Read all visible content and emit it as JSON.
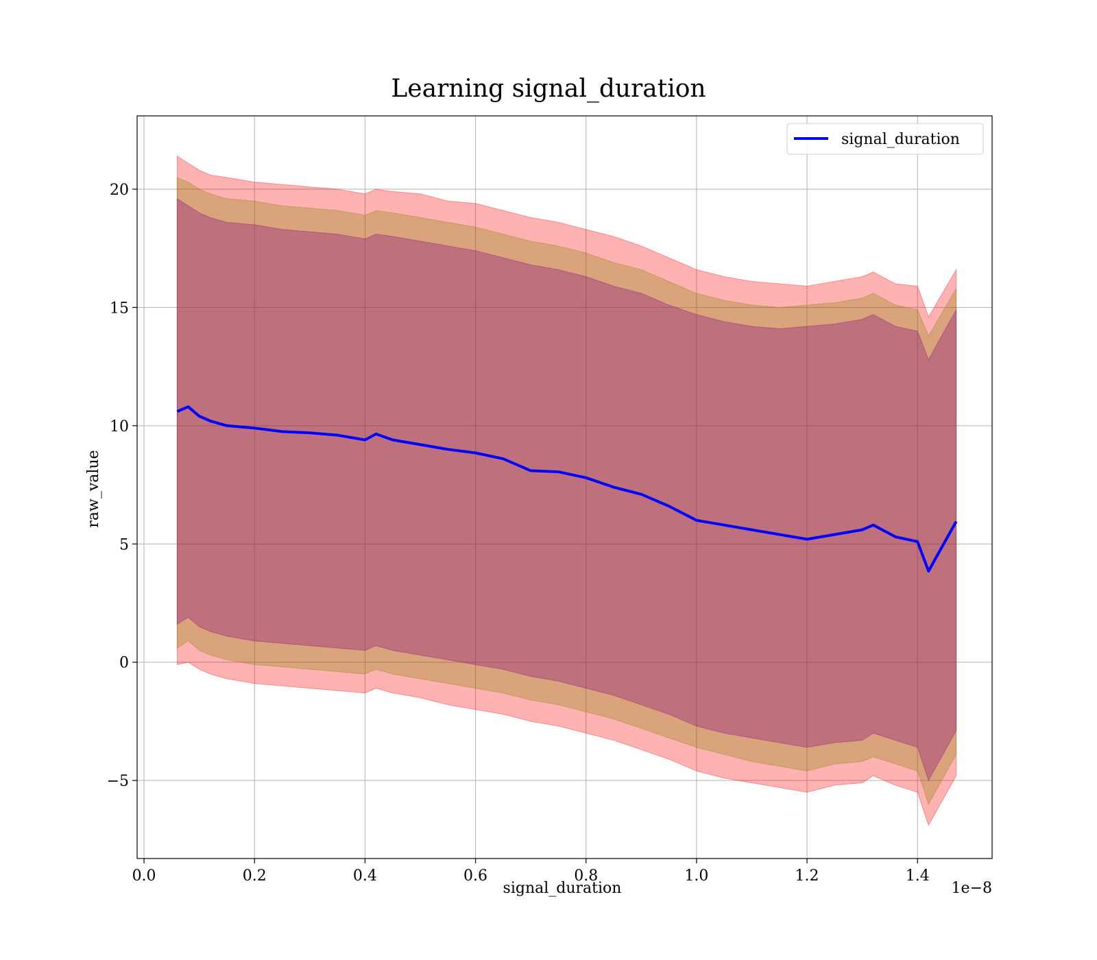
{
  "chart_data": {
    "type": "line",
    "title": "Learning signal_duration",
    "xlabel": "signal_duration",
    "ylabel": "raw_value",
    "x_offset_label": "1e−8",
    "x_scale_exponent": -8,
    "xlim": [
      -1.25e-10,
      1.535e-08
    ],
    "ylim": [
      -8.3,
      23.1
    ],
    "x_ticks": [
      0.0,
      2e-09,
      4e-09,
      6e-09,
      8e-09,
      1e-08,
      1.2e-08,
      1.4e-08
    ],
    "x_tick_labels": [
      "0.0",
      "0.2",
      "0.4",
      "0.6",
      "0.8",
      "1.0",
      "1.2",
      "1.4"
    ],
    "y_ticks": [
      -5,
      0,
      5,
      10,
      15,
      20
    ],
    "y_tick_labels": [
      "−5",
      "0",
      "5",
      "10",
      "15",
      "20"
    ],
    "grid": true,
    "legend_position": "top-right",
    "colors": {
      "line": "#0000ff",
      "band_outer": "#ff0000",
      "band_middle": "#808000",
      "band_inner": "#800080"
    },
    "series": [
      {
        "name": "signal_duration",
        "x": [
          6e-10,
          8e-10,
          1e-09,
          1.2e-09,
          1.5e-09,
          2e-09,
          2.5e-09,
          3e-09,
          3.5e-09,
          4e-09,
          4.2e-09,
          4.5e-09,
          5e-09,
          5.5e-09,
          6e-09,
          6.5e-09,
          7e-09,
          7.5e-09,
          8e-09,
          8.5e-09,
          9e-09,
          9.5e-09,
          1e-08,
          1.05e-08,
          1.1e-08,
          1.15e-08,
          1.2e-08,
          1.25e-08,
          1.3e-08,
          1.32e-08,
          1.36e-08,
          1.4e-08,
          1.42e-08,
          1.47e-08
        ],
        "y": [
          10.6,
          10.8,
          10.4,
          10.2,
          10.0,
          9.9,
          9.75,
          9.7,
          9.6,
          9.4,
          9.65,
          9.4,
          9.2,
          9.0,
          8.85,
          8.6,
          8.1,
          8.05,
          7.8,
          7.4,
          7.1,
          6.6,
          6.0,
          5.8,
          5.6,
          5.4,
          5.2,
          5.4,
          5.6,
          5.8,
          5.3,
          5.1,
          3.85,
          5.95
        ],
        "band_outer_upper": [
          21.4,
          21.1,
          20.8,
          20.6,
          20.5,
          20.3,
          20.2,
          20.1,
          20.0,
          19.8,
          20.0,
          19.9,
          19.8,
          19.5,
          19.4,
          19.1,
          18.8,
          18.6,
          18.3,
          18.0,
          17.6,
          17.1,
          16.6,
          16.3,
          16.1,
          16.0,
          15.9,
          16.1,
          16.3,
          16.5,
          16.0,
          15.9,
          14.6,
          16.6
        ],
        "band_outer_lower": [
          -0.1,
          0.0,
          -0.3,
          -0.5,
          -0.7,
          -0.9,
          -1.0,
          -1.1,
          -1.2,
          -1.3,
          -1.1,
          -1.3,
          -1.5,
          -1.8,
          -2.0,
          -2.2,
          -2.5,
          -2.7,
          -3.0,
          -3.3,
          -3.7,
          -4.1,
          -4.6,
          -4.9,
          -5.1,
          -5.3,
          -5.5,
          -5.2,
          -5.1,
          -4.8,
          -5.2,
          -5.5,
          -6.9,
          -4.8
        ],
        "band_middle_upper": [
          20.5,
          20.3,
          20.0,
          19.8,
          19.6,
          19.5,
          19.3,
          19.2,
          19.1,
          18.9,
          19.1,
          19.0,
          18.8,
          18.6,
          18.4,
          18.1,
          17.8,
          17.6,
          17.3,
          16.9,
          16.6,
          16.1,
          15.6,
          15.3,
          15.1,
          15.0,
          15.1,
          15.2,
          15.4,
          15.6,
          15.1,
          14.9,
          13.8,
          15.8
        ],
        "band_middle_lower": [
          0.6,
          0.9,
          0.5,
          0.3,
          0.1,
          -0.1,
          -0.2,
          -0.3,
          -0.4,
          -0.5,
          -0.3,
          -0.5,
          -0.7,
          -0.9,
          -1.1,
          -1.3,
          -1.6,
          -1.8,
          -2.1,
          -2.4,
          -2.8,
          -3.2,
          -3.6,
          -3.9,
          -4.2,
          -4.4,
          -4.6,
          -4.3,
          -4.2,
          -4.0,
          -4.3,
          -4.6,
          -6.0,
          -3.9
        ],
        "band_inner_upper": [
          19.6,
          19.3,
          19.0,
          18.8,
          18.6,
          18.5,
          18.3,
          18.2,
          18.1,
          17.9,
          18.1,
          18.0,
          17.8,
          17.6,
          17.4,
          17.1,
          16.8,
          16.6,
          16.3,
          15.9,
          15.6,
          15.1,
          14.7,
          14.4,
          14.2,
          14.1,
          14.2,
          14.3,
          14.5,
          14.7,
          14.2,
          14.0,
          12.8,
          14.9
        ],
        "band_inner_lower": [
          1.6,
          1.9,
          1.5,
          1.3,
          1.1,
          0.9,
          0.8,
          0.7,
          0.6,
          0.5,
          0.7,
          0.5,
          0.3,
          0.1,
          -0.1,
          -0.3,
          -0.6,
          -0.8,
          -1.1,
          -1.4,
          -1.8,
          -2.2,
          -2.7,
          -3.0,
          -3.2,
          -3.4,
          -3.6,
          -3.4,
          -3.3,
          -3.0,
          -3.3,
          -3.6,
          -5.0,
          -2.9
        ]
      }
    ]
  }
}
